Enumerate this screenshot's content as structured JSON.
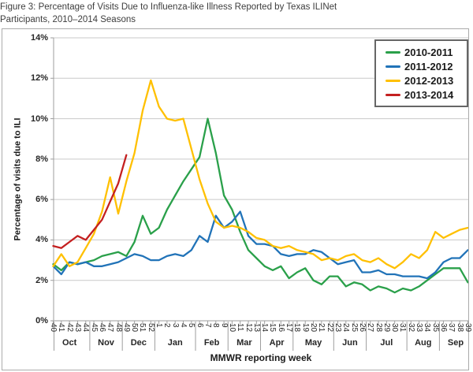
{
  "figure": {
    "title_line1": "Figure 3: Percentage of Visits Due to Influenza-like Illness Reported by Texas ILINet",
    "title_line2": "Participants, 2010–2014 Seasons"
  },
  "chart_data": {
    "type": "line",
    "title": "Figure 3: Percentage of Visits Due to Influenza-like Illness Reported by Texas ILINet Participants, 2010–2014 Seasons",
    "xlabel": "MMWR reporting week",
    "ylabel": "Percentage of visits due to ILI",
    "ylim": [
      0,
      14
    ],
    "ytick_step": 2,
    "ytick_labels": [
      "0%",
      "2%",
      "4%",
      "6%",
      "8%",
      "10%",
      "12%",
      "14%"
    ],
    "grid": "horizontal",
    "legend_position": "top-right",
    "categories": [
      "40",
      "41",
      "42",
      "43",
      "44",
      "45",
      "46",
      "47",
      "48",
      "49",
      "50",
      "51",
      "52",
      "1",
      "2",
      "3",
      "4",
      "5",
      "6",
      "7",
      "8",
      "9",
      "10",
      "11",
      "12",
      "13",
      "14",
      "15",
      "16",
      "17",
      "18",
      "19",
      "20",
      "21",
      "22",
      "23",
      "24",
      "25",
      "26",
      "27",
      "28",
      "29",
      "30",
      "31",
      "32",
      "33",
      "34",
      "35",
      "36",
      "37",
      "38",
      "39"
    ],
    "month_groups": [
      {
        "label": "Oct",
        "weeks": 5
      },
      {
        "label": "Nov",
        "weeks": 4
      },
      {
        "label": "Dec",
        "weeks": 4
      },
      {
        "label": "Jan",
        "weeks": 5
      },
      {
        "label": "Feb",
        "weeks": 4
      },
      {
        "label": "Mar",
        "weeks": 4
      },
      {
        "label": "Apr",
        "weeks": 4
      },
      {
        "label": "May",
        "weeks": 5
      },
      {
        "label": "Jun",
        "weeks": 4
      },
      {
        "label": "Jul",
        "weeks": 5
      },
      {
        "label": "Aug",
        "weeks": 4
      },
      {
        "label": "Sep",
        "weeks": 4
      }
    ],
    "series": [
      {
        "name": "2010-2011",
        "color": "#2AA04A",
        "values": [
          2.8,
          2.5,
          2.9,
          2.8,
          2.9,
          3.0,
          3.2,
          3.3,
          3.4,
          3.2,
          3.9,
          5.2,
          4.3,
          4.6,
          5.5,
          6.2,
          6.9,
          7.5,
          8.1,
          10.0,
          8.3,
          6.2,
          5.5,
          4.4,
          3.5,
          3.1,
          2.7,
          2.5,
          2.7,
          2.1,
          2.4,
          2.6,
          2.0,
          1.8,
          2.2,
          2.2,
          1.7,
          1.9,
          1.8,
          1.5,
          1.7,
          1.6,
          1.4,
          1.6,
          1.5,
          1.7,
          2.0,
          2.3,
          2.6,
          2.6,
          2.6,
          1.9
        ]
      },
      {
        "name": "2011-2012",
        "color": "#2173B8",
        "values": [
          2.7,
          2.3,
          2.9,
          2.8,
          2.9,
          2.7,
          2.7,
          2.8,
          2.9,
          3.1,
          3.3,
          3.2,
          3.0,
          3.0,
          3.2,
          3.3,
          3.2,
          3.5,
          4.2,
          3.9,
          5.2,
          4.6,
          4.9,
          5.4,
          4.2,
          3.8,
          3.8,
          3.7,
          3.3,
          3.2,
          3.3,
          3.3,
          3.5,
          3.4,
          3.1,
          2.8,
          2.9,
          3.0,
          2.4,
          2.4,
          2.5,
          2.3,
          2.3,
          2.2,
          2.2,
          2.2,
          2.1,
          2.4,
          2.9,
          3.1,
          3.1,
          3.5
        ]
      },
      {
        "name": "2012-2013",
        "color": "#FFC000",
        "values": [
          2.7,
          3.3,
          2.7,
          2.9,
          3.6,
          4.3,
          5.4,
          7.1,
          5.3,
          6.9,
          8.3,
          10.4,
          11.9,
          10.6,
          10.0,
          9.9,
          10.0,
          8.5,
          7.0,
          5.8,
          4.9,
          4.6,
          4.7,
          4.6,
          4.4,
          4.1,
          4.0,
          3.7,
          3.6,
          3.7,
          3.5,
          3.4,
          3.3,
          3.0,
          3.1,
          3.0,
          3.2,
          3.3,
          3.0,
          2.9,
          3.1,
          2.8,
          2.6,
          2.9,
          3.3,
          3.1,
          3.5,
          4.4,
          4.1,
          4.3,
          4.5,
          4.6
        ]
      },
      {
        "name": "2013-2014",
        "color": "#C42020",
        "values": [
          3.7,
          3.6,
          3.9,
          4.2,
          4.0,
          4.5,
          5.0,
          5.9,
          6.8,
          8.2
        ]
      }
    ]
  }
}
